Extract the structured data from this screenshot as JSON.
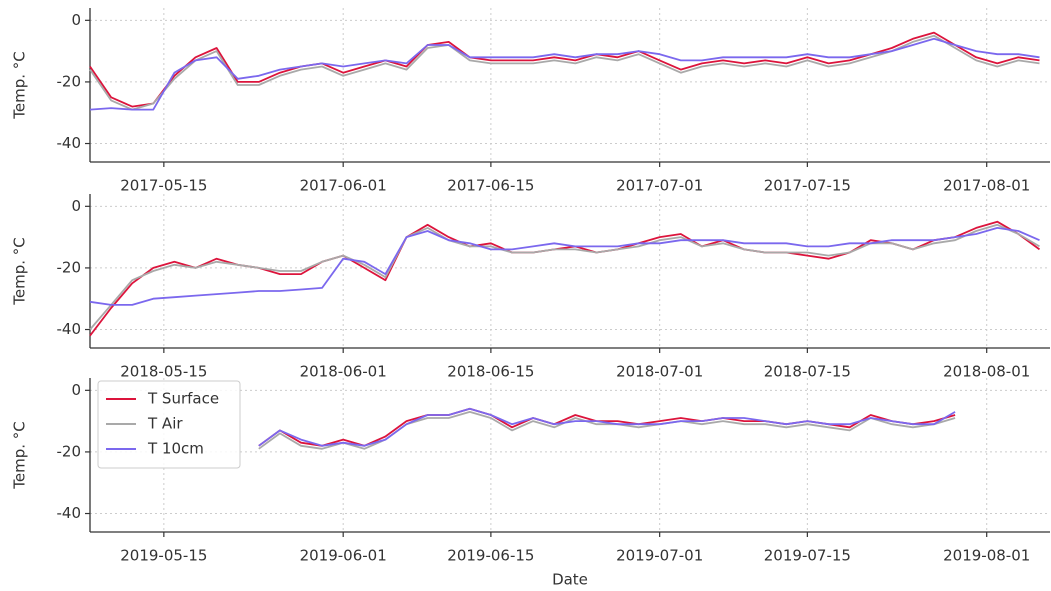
{
  "chart_data": [
    {
      "type": "line",
      "y_label": "Temp. °C",
      "xlim": [
        "2017-05-08",
        "2017-08-07"
      ],
      "ylim": [
        -46,
        4
      ],
      "xticks": [
        "2017-05-15",
        "2017-06-01",
        "2017-06-15",
        "2017-07-01",
        "2017-07-15",
        "2017-08-01"
      ],
      "yticks": [
        0,
        -20,
        -40
      ],
      "grid": true,
      "x": [
        "2017-05-08",
        "2017-05-10",
        "2017-05-12",
        "2017-05-14",
        "2017-05-16",
        "2017-05-18",
        "2017-05-20",
        "2017-05-22",
        "2017-05-24",
        "2017-05-26",
        "2017-05-28",
        "2017-05-30",
        "2017-06-01",
        "2017-06-03",
        "2017-06-05",
        "2017-06-07",
        "2017-06-09",
        "2017-06-11",
        "2017-06-13",
        "2017-06-15",
        "2017-06-17",
        "2017-06-19",
        "2017-06-21",
        "2017-06-23",
        "2017-06-25",
        "2017-06-27",
        "2017-06-29",
        "2017-07-01",
        "2017-07-03",
        "2017-07-05",
        "2017-07-07",
        "2017-07-09",
        "2017-07-11",
        "2017-07-13",
        "2017-07-15",
        "2017-07-17",
        "2017-07-19",
        "2017-07-21",
        "2017-07-23",
        "2017-07-25",
        "2017-07-27",
        "2017-07-29",
        "2017-07-31",
        "2017-08-02",
        "2017-08-04",
        "2017-08-06"
      ],
      "series": [
        {
          "color": "#dc143c",
          "values": [
            -15,
            -25,
            -28,
            -27,
            -18,
            -12,
            -9,
            -20,
            -20,
            -17,
            -15,
            -14,
            -17,
            -15,
            -13,
            -15,
            -8,
            -7,
            -12,
            -13,
            -13,
            -13,
            -12,
            -13,
            -11,
            -12,
            -10,
            -13,
            -16,
            -14,
            -13,
            -14,
            -13,
            -14,
            -12,
            -14,
            -13,
            -11,
            -9,
            -6,
            -4,
            -8,
            -12,
            -14,
            -12,
            -13
          ]
        },
        {
          "color": "#a9a9a9",
          "values": [
            -16,
            -26,
            -29,
            -27,
            -19,
            -13,
            -10,
            -21,
            -21,
            -18,
            -16,
            -15,
            -18,
            -16,
            -14,
            -16,
            -9,
            -8,
            -13,
            -14,
            -14,
            -14,
            -13,
            -14,
            -12,
            -13,
            -11,
            -14,
            -17,
            -15,
            -14,
            -15,
            -14,
            -15,
            -13,
            -15,
            -14,
            -12,
            -10,
            -7,
            -5,
            -9,
            -13,
            -15,
            -13,
            -14
          ]
        },
        {
          "color": "#7b68ee",
          "values": [
            -29,
            -28.5,
            -29,
            -29,
            -17,
            -13,
            -12,
            -19,
            -18,
            -16,
            -15,
            -14,
            -15,
            -14,
            -13,
            -14,
            -8,
            -8,
            -12,
            -12,
            -12,
            -12,
            -11,
            -12,
            -11,
            -11,
            -10,
            -11,
            -13,
            -13,
            -12,
            -12,
            -12,
            -12,
            -11,
            -12,
            -12,
            -11,
            -10,
            -8,
            -6,
            -8,
            -10,
            -11,
            -11,
            -12
          ]
        }
      ]
    },
    {
      "type": "line",
      "y_label": "Temp. °C",
      "xlim": [
        "2018-05-08",
        "2018-08-07"
      ],
      "ylim": [
        -46,
        4
      ],
      "xticks": [
        "2018-05-15",
        "2018-06-01",
        "2018-06-15",
        "2018-07-01",
        "2018-07-15",
        "2018-08-01"
      ],
      "yticks": [
        0,
        -20,
        -40
      ],
      "grid": true,
      "x": [
        "2018-05-08",
        "2018-05-10",
        "2018-05-12",
        "2018-05-14",
        "2018-05-16",
        "2018-05-18",
        "2018-05-20",
        "2018-05-22",
        "2018-05-24",
        "2018-05-26",
        "2018-05-28",
        "2018-05-30",
        "2018-06-01",
        "2018-06-03",
        "2018-06-05",
        "2018-06-07",
        "2018-06-09",
        "2018-06-11",
        "2018-06-13",
        "2018-06-15",
        "2018-06-17",
        "2018-06-19",
        "2018-06-21",
        "2018-06-23",
        "2018-06-25",
        "2018-06-27",
        "2018-06-29",
        "2018-07-01",
        "2018-07-03",
        "2018-07-05",
        "2018-07-07",
        "2018-07-09",
        "2018-07-11",
        "2018-07-13",
        "2018-07-15",
        "2018-07-17",
        "2018-07-19",
        "2018-07-21",
        "2018-07-23",
        "2018-07-25",
        "2018-07-27",
        "2018-07-29",
        "2018-07-31",
        "2018-08-02",
        "2018-08-04",
        "2018-08-06"
      ],
      "series": [
        {
          "color": "#dc143c",
          "values": [
            -42,
            -33,
            -25,
            -20,
            -18,
            -20,
            -17,
            -19,
            -20,
            -22,
            -22,
            -18,
            -16,
            -20,
            -24,
            -10,
            -6,
            -10,
            -13,
            -12,
            -15,
            -15,
            -14,
            -13,
            -15,
            -14,
            -12,
            -10,
            -9,
            -13,
            -11,
            -14,
            -15,
            -15,
            -16,
            -17,
            -15,
            -11,
            -12,
            -14,
            -11,
            -10,
            -7,
            -5,
            -9,
            -14
          ]
        },
        {
          "color": "#a9a9a9",
          "values": [
            -40,
            -32,
            -24,
            -21,
            -19,
            -20,
            -18,
            -19,
            -20,
            -21,
            -21,
            -18,
            -16,
            -19,
            -23,
            -10,
            -7,
            -11,
            -13,
            -13,
            -15,
            -15,
            -14,
            -14,
            -15,
            -14,
            -13,
            -11,
            -10,
            -13,
            -12,
            -14,
            -15,
            -15,
            -15,
            -16,
            -15,
            -12,
            -12,
            -14,
            -12,
            -11,
            -8,
            -6,
            -9,
            -13
          ]
        },
        {
          "color": "#7b68ee",
          "values": [
            -31,
            -32,
            -32,
            -30,
            -29.5,
            -29,
            -28.5,
            -28,
            -27.5,
            -27.5,
            -27,
            -26.5,
            -17,
            -18,
            -22,
            -10,
            -8,
            -11,
            -12,
            -14,
            -14,
            -13,
            -12,
            -13,
            -13,
            -13,
            -12,
            -12,
            -11,
            -11,
            -11,
            -12,
            -12,
            -12,
            -13,
            -13,
            -12,
            -12,
            -11,
            -11,
            -11,
            -10,
            -9,
            -7,
            -8,
            -11
          ]
        }
      ]
    },
    {
      "type": "line",
      "y_label": "Temp. °C",
      "x_label": "Date",
      "xlim": [
        "2019-05-08",
        "2019-08-07"
      ],
      "ylim": [
        -46,
        4
      ],
      "xticks": [
        "2019-05-15",
        "2019-06-01",
        "2019-06-15",
        "2019-07-01",
        "2019-07-15",
        "2019-08-01"
      ],
      "yticks": [
        0,
        -20,
        -40
      ],
      "grid": true,
      "legend": "upper left",
      "x": [
        "2019-05-08",
        "2019-05-10",
        "2019-05-12",
        "2019-05-14",
        "2019-05-16",
        "2019-05-18",
        "2019-05-20",
        "2019-05-22",
        "2019-05-24",
        "2019-05-26",
        "2019-05-28",
        "2019-05-30",
        "2019-06-01",
        "2019-06-03",
        "2019-06-05",
        "2019-06-07",
        "2019-06-09",
        "2019-06-11",
        "2019-06-13",
        "2019-06-15",
        "2019-06-17",
        "2019-06-19",
        "2019-06-21",
        "2019-06-23",
        "2019-06-25",
        "2019-06-27",
        "2019-06-29",
        "2019-07-01",
        "2019-07-03",
        "2019-07-05",
        "2019-07-07",
        "2019-07-09",
        "2019-07-11",
        "2019-07-13",
        "2019-07-15",
        "2019-07-17",
        "2019-07-19",
        "2019-07-21",
        "2019-07-23",
        "2019-07-25",
        "2019-07-27",
        "2019-07-29",
        "2019-07-31",
        "2019-08-02",
        "2019-08-04",
        "2019-08-06"
      ],
      "series": [
        {
          "name": "T Surface",
          "color": "#dc143c",
          "values": [
            null,
            null,
            null,
            null,
            null,
            null,
            null,
            null,
            -18,
            -13,
            -17,
            -18,
            -16,
            -18,
            -15,
            -10,
            -8,
            -8,
            -6,
            -8,
            -12,
            -9,
            -11,
            -8,
            -10,
            -10,
            -11,
            -10,
            -9,
            -10,
            -9,
            -10,
            -10,
            -11,
            -10,
            -11,
            -12,
            -8,
            -10,
            -11,
            -10,
            -8,
            null,
            null,
            null,
            null
          ]
        },
        {
          "name": "T Air",
          "color": "#a9a9a9",
          "values": [
            null,
            null,
            null,
            null,
            null,
            null,
            null,
            null,
            -19,
            -14,
            -18,
            -19,
            -17,
            -19,
            -16,
            -11,
            -9,
            -9,
            -7,
            -9,
            -13,
            -10,
            -12,
            -9,
            -11,
            -11,
            -12,
            -11,
            -10,
            -11,
            -10,
            -11,
            -11,
            -12,
            -11,
            -12,
            -13,
            -9,
            -11,
            -12,
            -11,
            -9,
            null,
            null,
            null,
            null
          ]
        },
        {
          "name": "T 10cm",
          "color": "#7b68ee",
          "values": [
            null,
            null,
            null,
            null,
            null,
            null,
            null,
            null,
            -18,
            -13,
            -16,
            -18,
            -17,
            -18,
            -16,
            -11,
            -8,
            -8,
            -6,
            -8,
            -11,
            -9,
            -11,
            -10,
            -10,
            -11,
            -11,
            -11,
            -10,
            -10,
            -9,
            -9,
            -10,
            -11,
            -10,
            -11,
            -11,
            -9,
            -10,
            -11,
            -11,
            -7,
            null,
            null,
            null,
            null
          ]
        }
      ]
    }
  ]
}
